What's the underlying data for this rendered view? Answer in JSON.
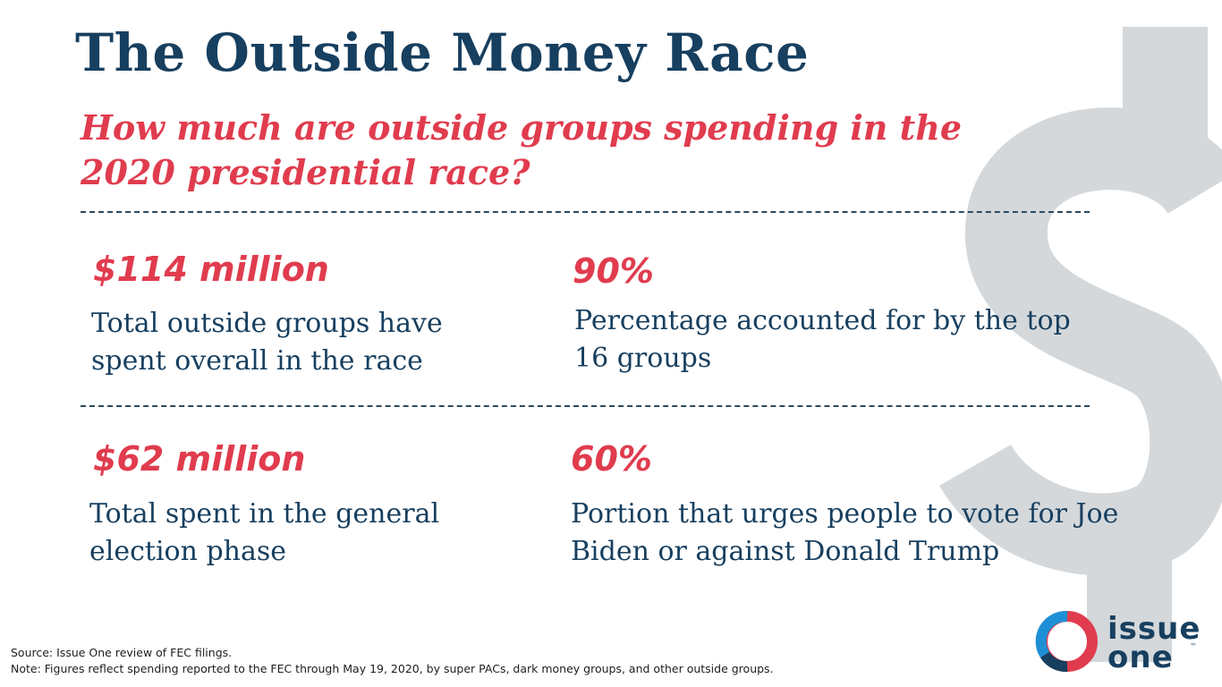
{
  "header": {
    "title": "The Outside Money Race",
    "subtitle": "How much are outside groups spending in the 2020 presidential race?"
  },
  "stats": [
    {
      "value": "$114 million",
      "description": "Total outside groups have spent overall in the race"
    },
    {
      "value": "90%",
      "description": "Percentage accounted for by the top 16 groups"
    },
    {
      "value": "$62 million",
      "description": "Total spent in the general election phase"
    },
    {
      "value": "60%",
      "description": "Portion that urges people to vote for Joe Biden or against Donald Trump"
    }
  ],
  "footer": {
    "source": "Source: Issue One review of FEC filings.",
    "note": "Note: Figures reflect spending reported to the FEC through May 19, 2020, by super PACs, dark money groups, and other outside groups."
  },
  "logo": {
    "line1": "issue",
    "line2": "one",
    "trademark": "™"
  },
  "colors": {
    "navy": "#173f5f",
    "red": "#e03c4e",
    "dollar_gray": "#d4d8db",
    "logo_blue": "#1e8fd6"
  },
  "icons": {
    "background": "dollar-sign-icon",
    "logo": "issue-one-ring-icon"
  }
}
